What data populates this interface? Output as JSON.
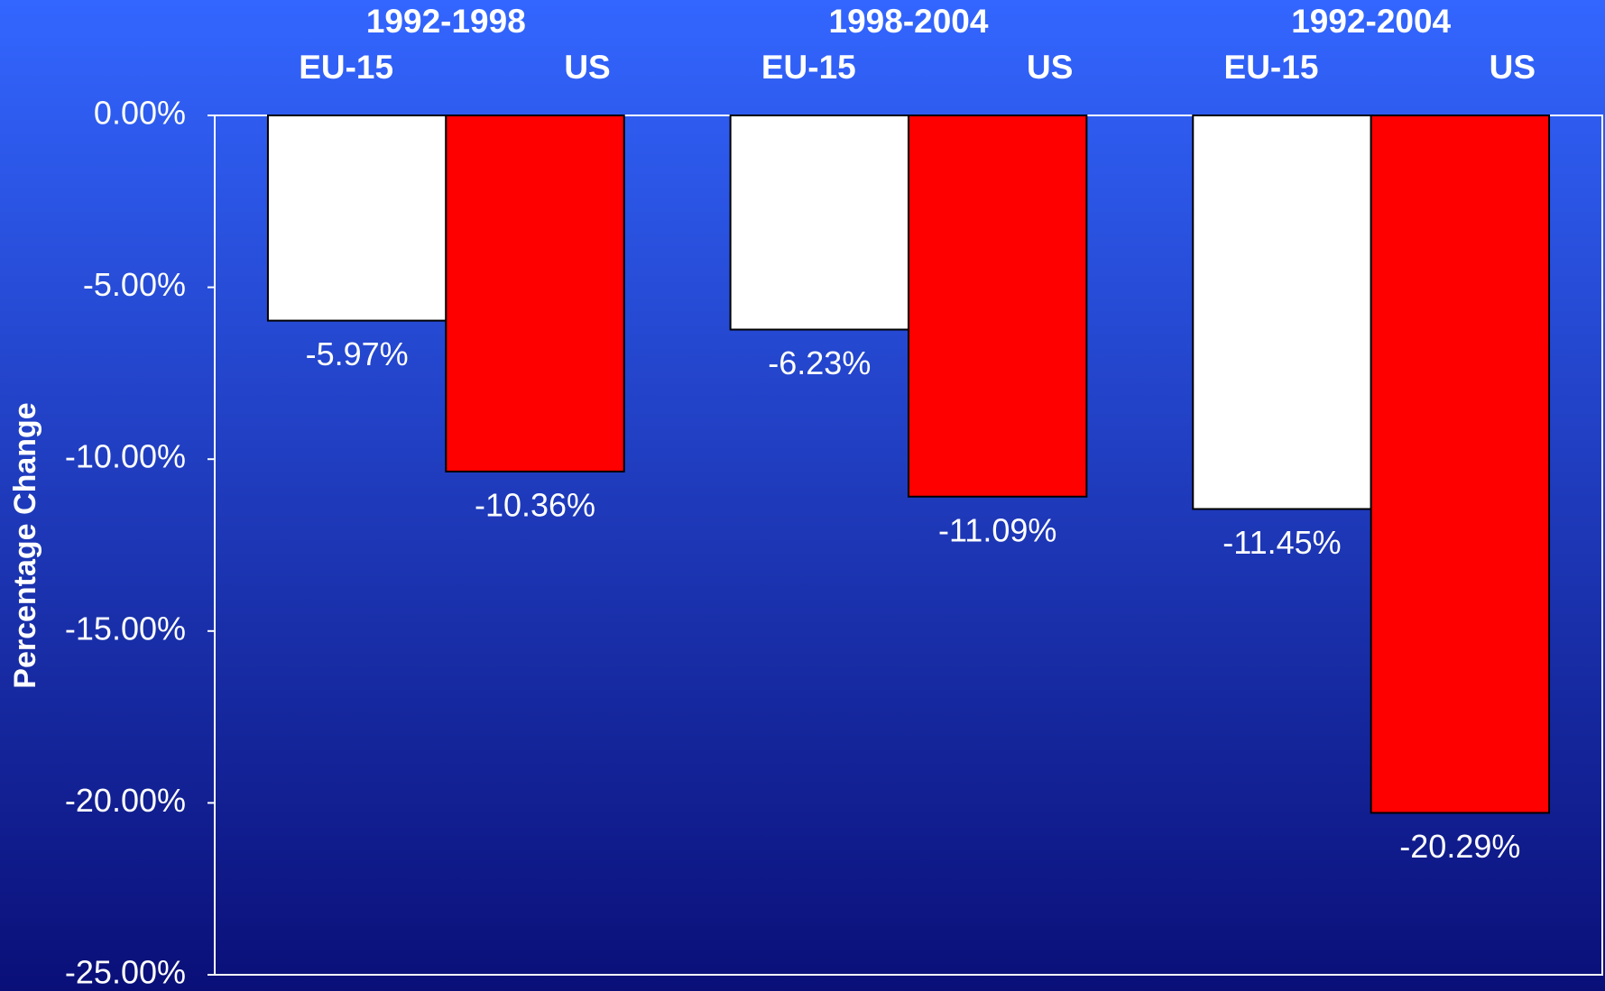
{
  "chart_data": {
    "type": "bar",
    "y_label": "Percentage Change",
    "categories": [
      "1992-1998",
      "1998-2004",
      "1992-2004"
    ],
    "series": [
      {
        "name": "EU-15",
        "color": "#ffffff",
        "values": [
          -5.97,
          -6.23,
          -11.45
        ],
        "value_labels": [
          "-5.97%",
          "-6.23%",
          "-11.45%"
        ]
      },
      {
        "name": "US",
        "color": "#ff0000",
        "values": [
          -10.36,
          -11.09,
          -20.29
        ],
        "value_labels": [
          "-10.36%",
          "-11.09%",
          "-20.29%"
        ]
      }
    ],
    "ylim": [
      -25,
      0
    ],
    "yticks": [
      {
        "value": 0,
        "label": "0.00%"
      },
      {
        "value": -5,
        "label": "-5.00%"
      },
      {
        "value": -10,
        "label": "-10.00%"
      },
      {
        "value": -15,
        "label": "-15.00%"
      },
      {
        "value": -20,
        "label": "-20.00%"
      },
      {
        "value": -25,
        "label": "-25.00%"
      }
    ],
    "grid": false
  }
}
